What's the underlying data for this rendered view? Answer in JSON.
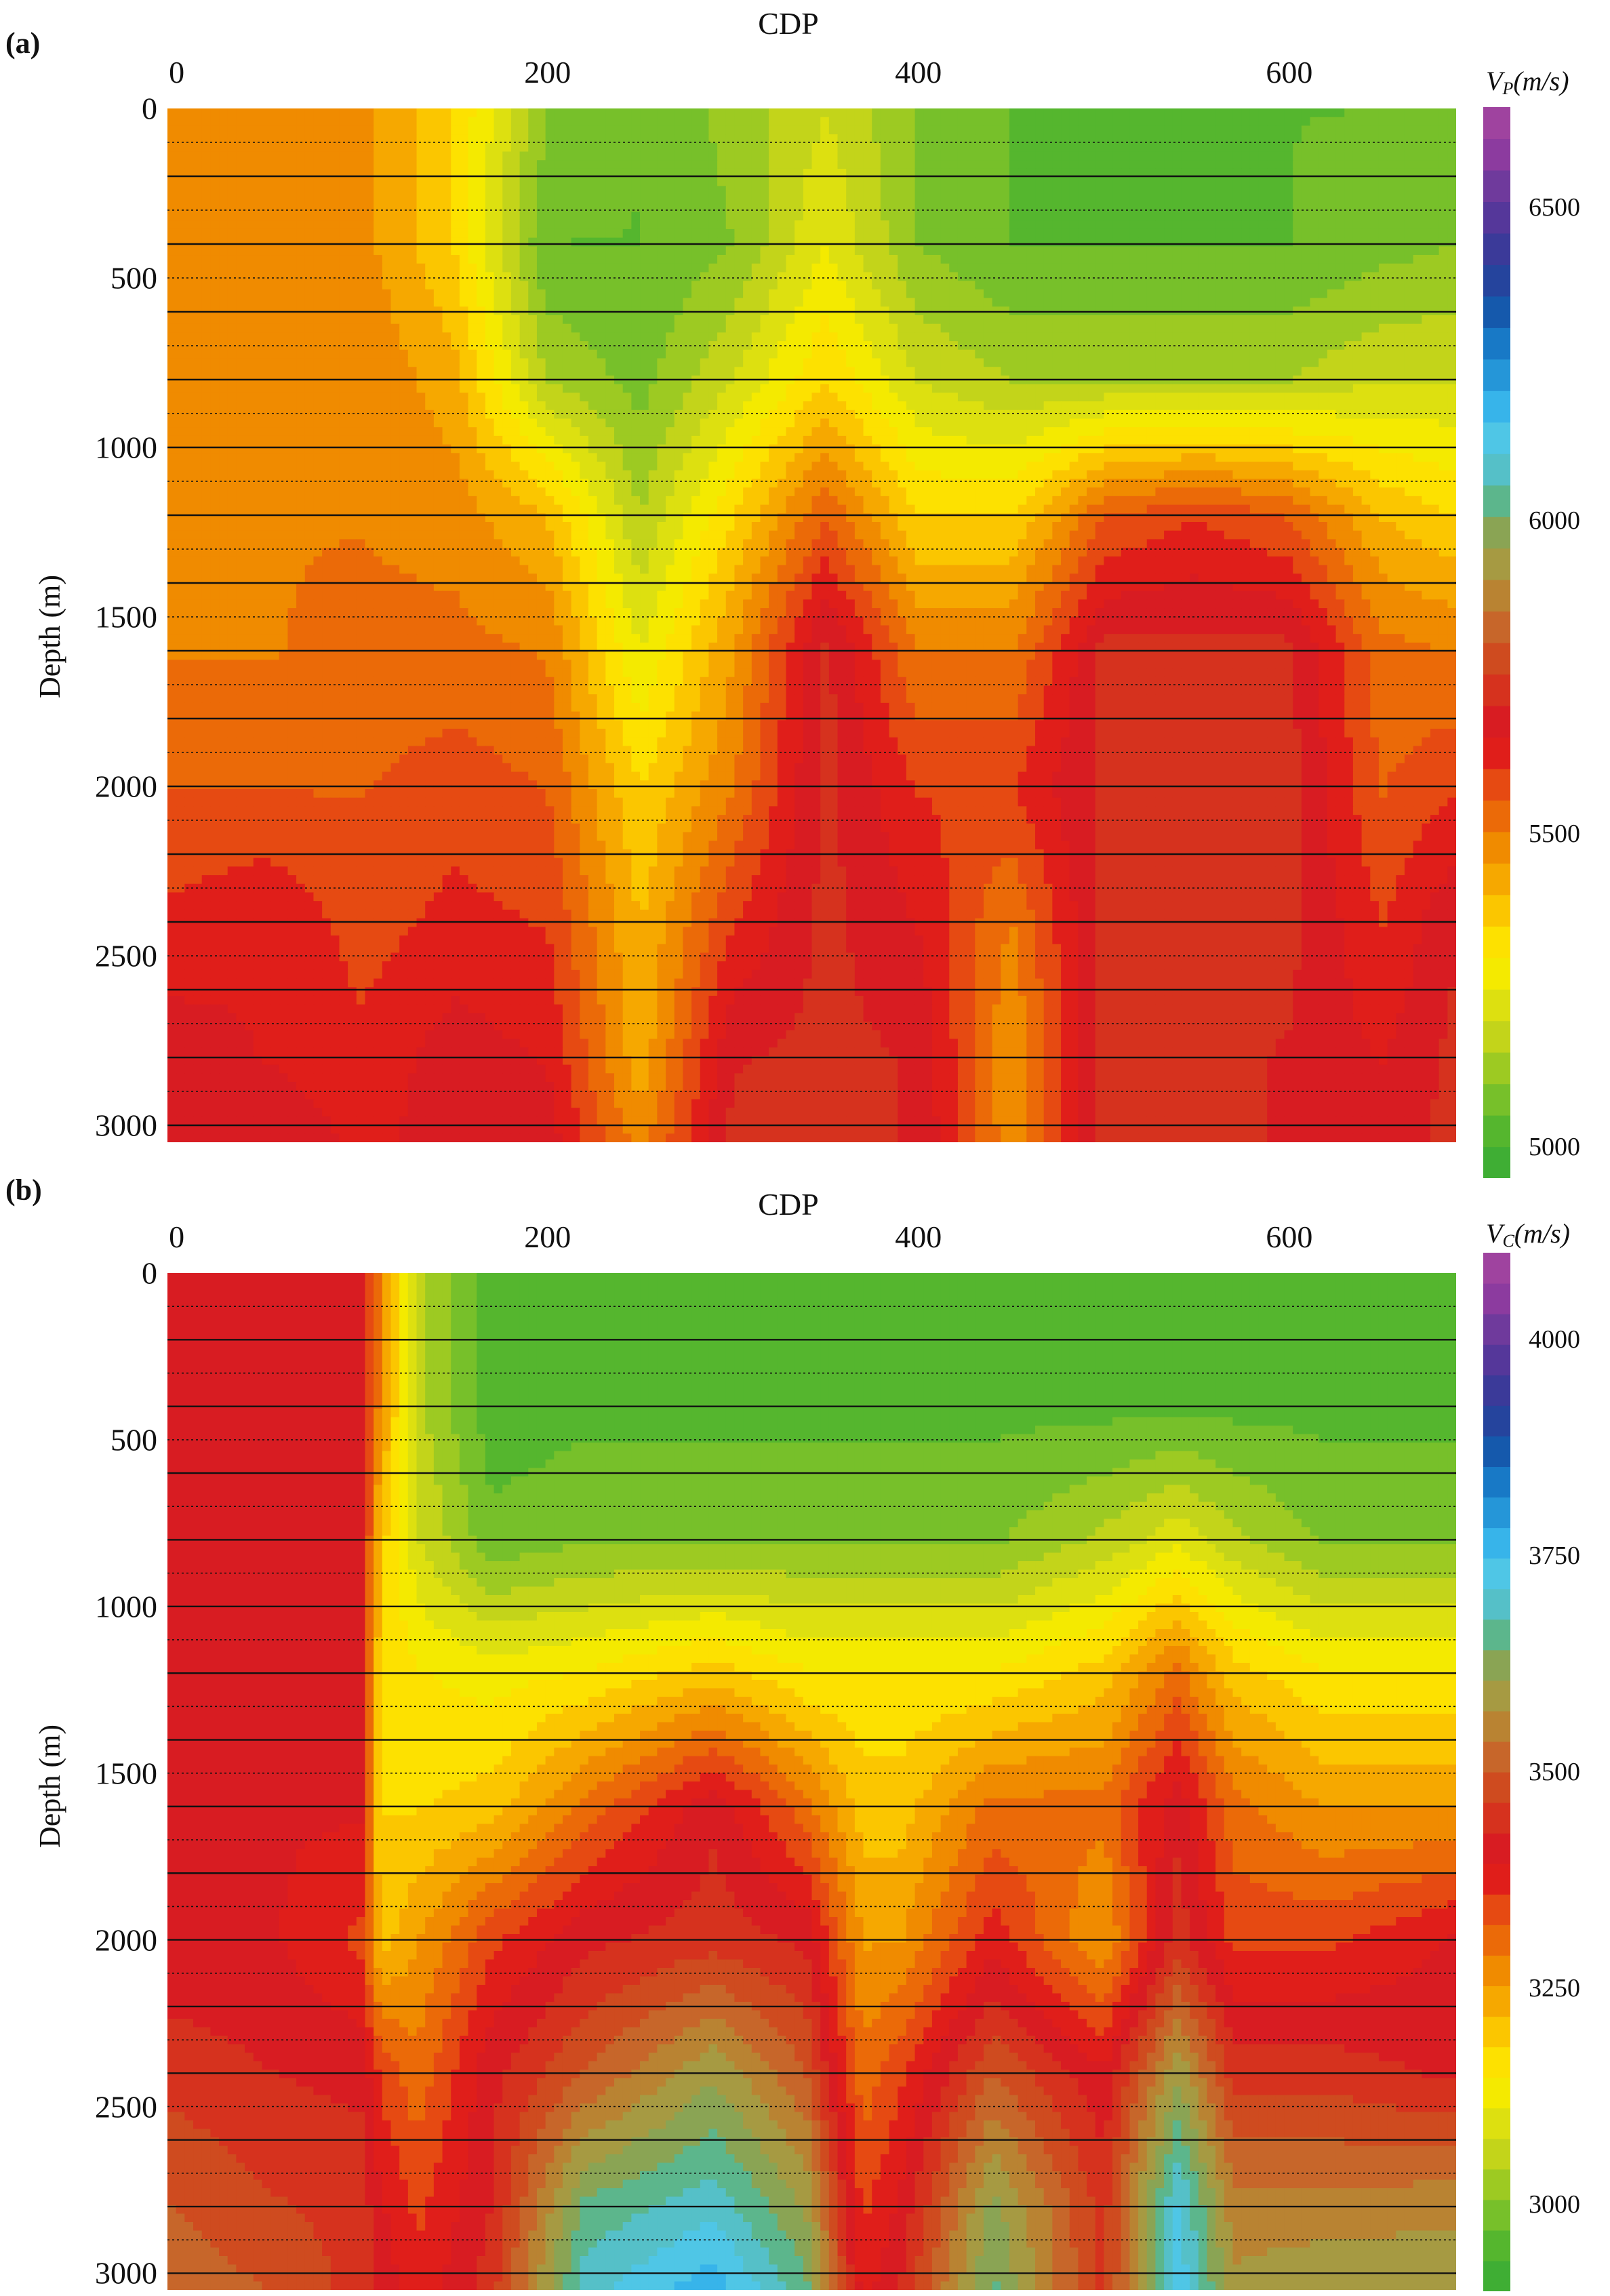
{
  "chart_data": [
    {
      "type": "heatmap",
      "panel_label": "(a)",
      "xlabel": "CDP",
      "ylabel": "Depth (m)",
      "x_ticks": [
        "0",
        "200",
        "400",
        "600"
      ],
      "x_tick_values": [
        0,
        200,
        400,
        600
      ],
      "y_ticks": [
        "0",
        "500",
        "1000",
        "1500",
        "2000",
        "2500",
        "3000"
      ],
      "y_tick_values": [
        0,
        500,
        1000,
        1500,
        2000,
        2500,
        3000
      ],
      "xlim": [
        -5,
        690
      ],
      "ylim": [
        0,
        3050
      ],
      "colorbar": {
        "title_main": "V",
        "title_sub": "P",
        "title_unit": "(m/s)",
        "ticks": [
          "5000",
          "5500",
          "6000",
          "6500"
        ],
        "tick_values": [
          5000,
          5500,
          6000,
          6500
        ],
        "range": [
          4950,
          6660
        ]
      },
      "layer_boundaries_solid": [
        200,
        400,
        600,
        800,
        1000,
        1200,
        1400,
        1600,
        1800,
        2000,
        2200,
        2400,
        2600,
        2800,
        3000
      ],
      "layer_boundaries_dotted": [
        100,
        300,
        500,
        700,
        900,
        1100,
        1300,
        1500,
        1700,
        1900,
        2100,
        2300,
        2500,
        2700,
        2900
      ],
      "x_grid": [
        0,
        50,
        100,
        150,
        200,
        250,
        300,
        350,
        400,
        450,
        500,
        550,
        600,
        650,
        690
      ],
      "depth_grid": [
        0,
        400,
        800,
        1200,
        1600,
        2000,
        2400,
        2800,
        3050
      ],
      "values": [
        [
          5500,
          5500,
          5470,
          5350,
          5100,
          5050,
          5120,
          5200,
          5100,
          5050,
          5050,
          5050,
          5050,
          5050,
          5100
        ],
        [
          5500,
          5500,
          5470,
          5350,
          5050,
          5050,
          5100,
          5250,
          5100,
          5050,
          5050,
          5050,
          5050,
          5080,
          5100
        ],
        [
          5500,
          5500,
          5500,
          5420,
          5150,
          5080,
          5200,
          5350,
          5200,
          5150,
          5150,
          5150,
          5150,
          5200,
          5200
        ],
        [
          5500,
          5500,
          5500,
          5480,
          5400,
          5150,
          5350,
          5550,
          5350,
          5350,
          5550,
          5600,
          5550,
          5400,
          5350
        ],
        [
          5500,
          5500,
          5520,
          5520,
          5500,
          5250,
          5450,
          5720,
          5500,
          5500,
          5720,
          5720,
          5720,
          5520,
          5500
        ],
        [
          5550,
          5550,
          5550,
          5580,
          5550,
          5350,
          5500,
          5720,
          5600,
          5600,
          5720,
          5720,
          5720,
          5550,
          5600
        ],
        [
          5620,
          5650,
          5580,
          5620,
          5600,
          5400,
          5600,
          5720,
          5650,
          5500,
          5720,
          5720,
          5720,
          5600,
          5700
        ],
        [
          5680,
          5650,
          5620,
          5680,
          5650,
          5420,
          5700,
          5720,
          5700,
          5450,
          5720,
          5720,
          5700,
          5650,
          5720
        ],
        [
          5700,
          5700,
          5640,
          5680,
          5680,
          5480,
          5720,
          5720,
          5700,
          5470,
          5720,
          5720,
          5700,
          5680,
          5720
        ]
      ]
    },
    {
      "type": "heatmap",
      "panel_label": "(b)",
      "xlabel": "CDP",
      "ylabel": "Depth (m)",
      "x_ticks": [
        "0",
        "200",
        "400",
        "600"
      ],
      "x_tick_values": [
        0,
        200,
        400,
        600
      ],
      "y_ticks": [
        "0",
        "500",
        "1000",
        "1500",
        "2000",
        "2500",
        "3000"
      ],
      "y_tick_values": [
        0,
        500,
        1000,
        1500,
        2000,
        2500,
        3000
      ],
      "xlim": [
        -5,
        690
      ],
      "ylim": [
        0,
        3050
      ],
      "colorbar": {
        "title_main": "V",
        "title_sub": "C",
        "title_unit": "(m/s)",
        "ticks": [
          "3000",
          "3250",
          "3500",
          "3750",
          "4000"
        ],
        "tick_values": [
          3000,
          3250,
          3500,
          3750,
          4000
        ],
        "range": [
          2900,
          4100
        ]
      },
      "layer_boundaries_solid": [
        200,
        400,
        600,
        800,
        1000,
        1200,
        1400,
        1600,
        1800,
        2000,
        2200,
        2400,
        2600,
        2800,
        3000
      ],
      "layer_boundaries_dotted": [
        100,
        300,
        500,
        700,
        900,
        1100,
        1300,
        1500,
        1700,
        1900,
        2100,
        2300,
        2500,
        2700,
        2900
      ],
      "x_grid": [
        0,
        50,
        100,
        110,
        130,
        170,
        220,
        290,
        340,
        370,
        390,
        440,
        500,
        540,
        570,
        620,
        690
      ],
      "depth_grid": [
        0,
        400,
        800,
        1200,
        1600,
        2000,
        2400,
        2800,
        3050
      ],
      "values": [
        [
          3400,
          3400,
          3400,
          3270,
          3050,
          2950,
          2960,
          2960,
          2960,
          2960,
          2960,
          2960,
          2960,
          2960,
          2960,
          2960,
          2960
        ],
        [
          3400,
          3400,
          3400,
          3270,
          3050,
          2950,
          2960,
          2960,
          2960,
          2960,
          2960,
          2960,
          2960,
          2960,
          2960,
          2960,
          2960
        ],
        [
          3400,
          3400,
          3400,
          3200,
          3080,
          2980,
          3000,
          3000,
          3000,
          3000,
          3000,
          3000,
          3050,
          3100,
          3050,
          3000,
          3000
        ],
        [
          3400,
          3400,
          3400,
          3180,
          3150,
          3130,
          3150,
          3200,
          3150,
          3150,
          3150,
          3150,
          3200,
          3300,
          3200,
          3150,
          3150
        ],
        [
          3400,
          3400,
          3400,
          3180,
          3180,
          3200,
          3300,
          3420,
          3300,
          3200,
          3200,
          3300,
          3300,
          3420,
          3300,
          3250,
          3250
        ],
        [
          3400,
          3400,
          3350,
          3200,
          3250,
          3350,
          3420,
          3450,
          3420,
          3250,
          3250,
          3380,
          3250,
          3450,
          3350,
          3350,
          3400
        ],
        [
          3450,
          3430,
          3420,
          3350,
          3300,
          3420,
          3500,
          3600,
          3500,
          3300,
          3350,
          3500,
          3400,
          3600,
          3450,
          3450,
          3420
        ],
        [
          3500,
          3470,
          3450,
          3400,
          3350,
          3430,
          3650,
          3700,
          3600,
          3350,
          3400,
          3620,
          3450,
          3720,
          3550,
          3550,
          3560
        ],
        [
          3520,
          3500,
          3450,
          3420,
          3370,
          3450,
          3700,
          3770,
          3650,
          3380,
          3430,
          3650,
          3450,
          3740,
          3580,
          3600,
          3600
        ]
      ]
    }
  ]
}
